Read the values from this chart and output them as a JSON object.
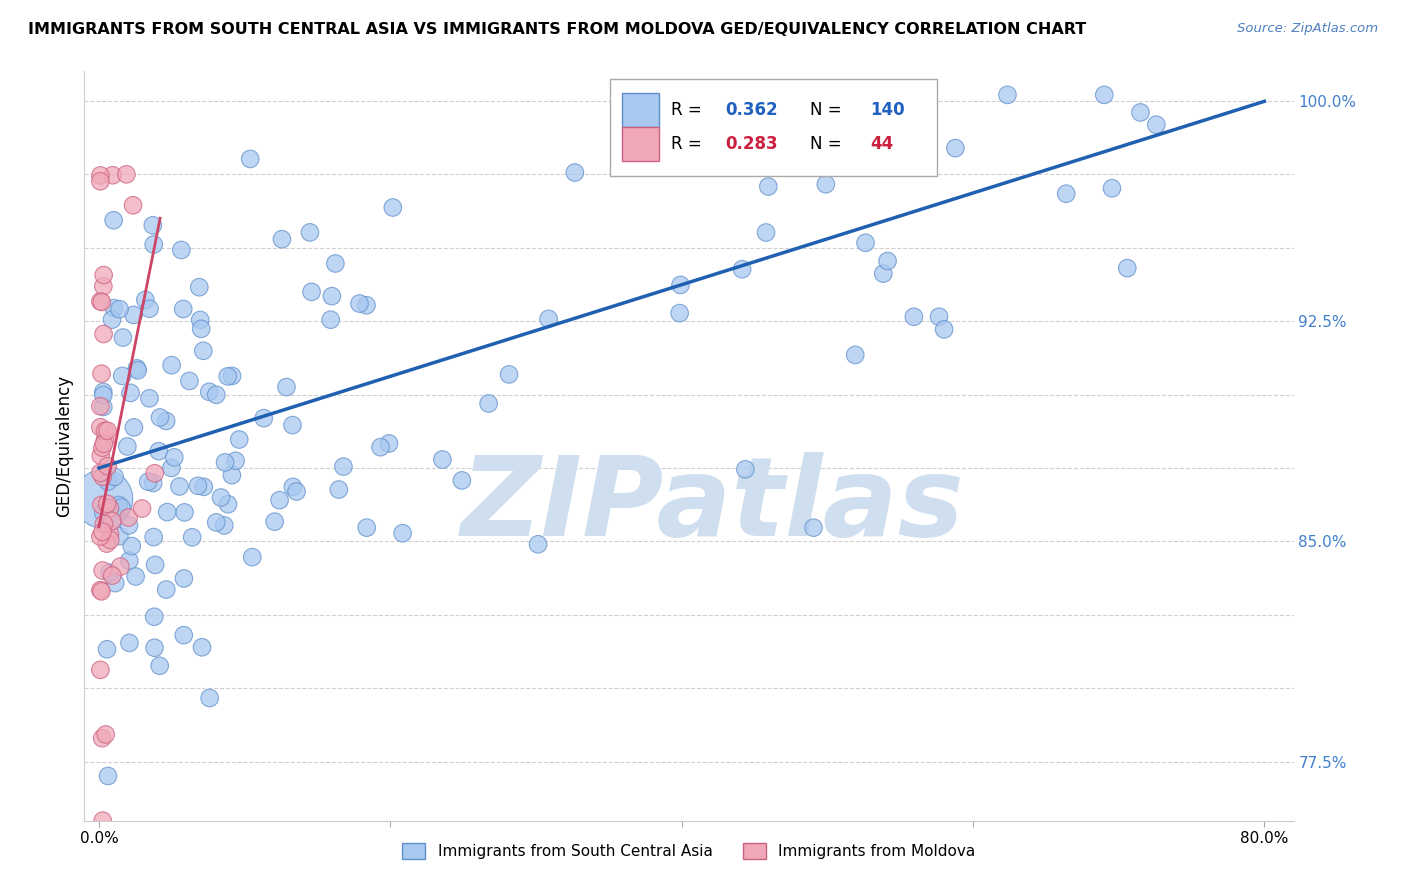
{
  "title": "IMMIGRANTS FROM SOUTH CENTRAL ASIA VS IMMIGRANTS FROM MOLDOVA GED/EQUIVALENCY CORRELATION CHART",
  "source": "Source: ZipAtlas.com",
  "ylabel": "GED/Equivalency",
  "xlim": [
    -0.01,
    0.82
  ],
  "ylim": [
    0.755,
    1.01
  ],
  "ytick_vals": [
    0.775,
    0.8,
    0.825,
    0.85,
    0.875,
    0.9,
    0.925,
    0.95,
    0.975,
    1.0
  ],
  "ytick_labels": [
    "77.5%",
    "",
    "",
    "85.0%",
    "",
    "",
    "92.5%",
    "",
    "",
    "100.0%"
  ],
  "xtick_vals": [
    0.0,
    0.2,
    0.4,
    0.6,
    0.8
  ],
  "xtick_labels": [
    "0.0%",
    "",
    "",
    "",
    "80.0%"
  ],
  "r_blue": 0.362,
  "n_blue": 140,
  "r_pink": 0.283,
  "n_pink": 44,
  "blue_color": "#a8c8f0",
  "blue_edge": "#6090cc",
  "pink_color": "#f0a8b8",
  "pink_edge": "#cc6080",
  "trend_blue": "#2060b0",
  "trend_pink": "#cc4466",
  "watermark": "ZIPatlas",
  "watermark_color": "#d0dff0",
  "legend_blue": "Immigrants from South Central Asia",
  "legend_pink": "Immigrants from Moldova",
  "blue_r_color": "#2060c0",
  "pink_r_color": "#cc2040",
  "grid_color": "#d0d0d0",
  "ytick_color": "#4080cc"
}
